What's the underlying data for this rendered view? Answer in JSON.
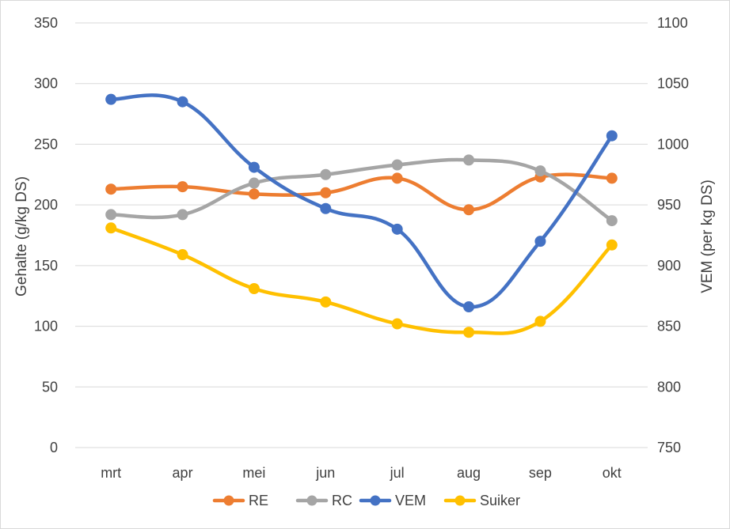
{
  "chart_data": {
    "type": "line",
    "title": "",
    "categories": [
      "mrt",
      "apr",
      "mei",
      "jun",
      "jul",
      "aug",
      "sep",
      "okt"
    ],
    "ylabel": "Gehalte (g/kg DS)",
    "y2label": "VEM (per kg DS)",
    "ylim": [
      0,
      350
    ],
    "y2lim": [
      750,
      1100
    ],
    "yticks": [
      0,
      50,
      100,
      150,
      200,
      250,
      300,
      350
    ],
    "y2ticks": [
      750,
      800,
      850,
      900,
      950,
      1000,
      1050,
      1100
    ],
    "grid": true,
    "legend_position": "bottom",
    "series": [
      {
        "name": "RE",
        "axis": "left",
        "color": "#ED7D31",
        "values": [
          213,
          215,
          209,
          210,
          222,
          196,
          223,
          222
        ]
      },
      {
        "name": "RC",
        "axis": "left",
        "color": "#A5A5A5",
        "values": [
          192,
          192,
          218,
          225,
          233,
          237,
          228,
          187
        ]
      },
      {
        "name": "VEM",
        "axis": "right",
        "color": "#4472C4",
        "values": [
          1037,
          1035,
          981,
          947,
          930,
          866,
          920,
          1007
        ]
      },
      {
        "name": "Suiker",
        "axis": "left",
        "color": "#FFC000",
        "values": [
          181,
          159,
          131,
          120,
          102,
          95,
          104,
          167
        ]
      }
    ]
  }
}
